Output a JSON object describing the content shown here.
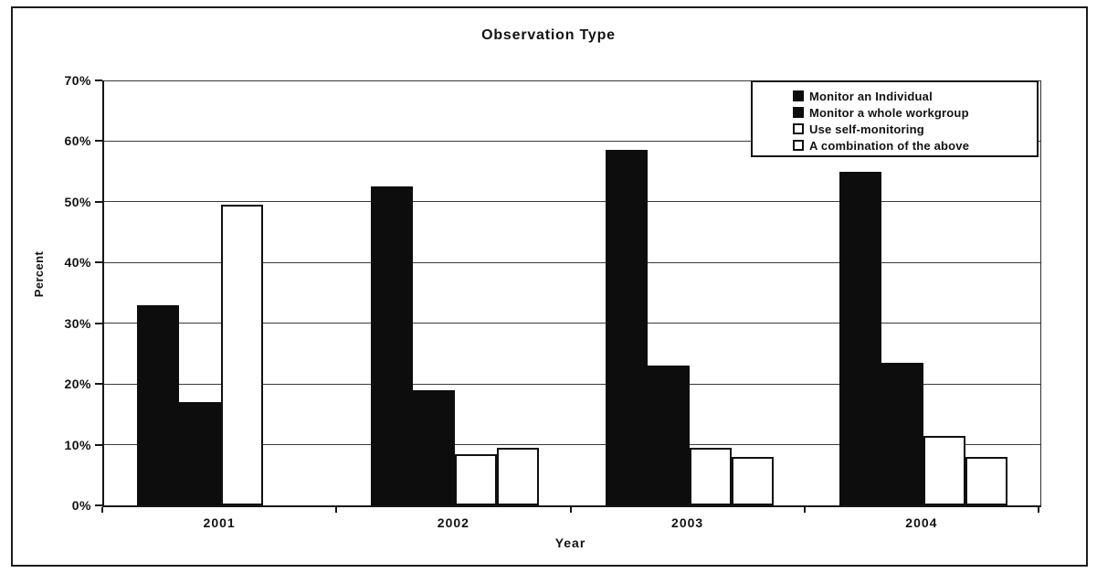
{
  "title": "Observation Type",
  "chart_data": {
    "type": "bar",
    "title": "Observation Type",
    "xlabel": "Year",
    "ylabel": "Percent",
    "ylim": [
      0,
      70
    ],
    "y_tick_step": 10,
    "y_ticks": [
      "0%",
      "10%",
      "20%",
      "30%",
      "40%",
      "50%",
      "60%",
      "70%"
    ],
    "grid": true,
    "legend_position": "top-right",
    "categories": [
      "2001",
      "2002",
      "2003",
      "2004"
    ],
    "series": [
      {
        "name": "Monitor an Individual",
        "fill": "#0d0d0d",
        "values": [
          33,
          52.5,
          58.5,
          55
        ]
      },
      {
        "name": "Monitor a whole workgroup",
        "fill": "#0d0d0d",
        "values": [
          17,
          19,
          23,
          23.5
        ]
      },
      {
        "name": "Use self-monitoring",
        "fill": "#ffffff",
        "values": [
          49.5,
          8.5,
          9.5,
          11.5
        ]
      },
      {
        "name": "A combination of the above",
        "fill": "#ffffff",
        "values": [
          0,
          9.5,
          8,
          8
        ]
      }
    ]
  },
  "legend": {
    "items": [
      {
        "label": "Monitor an Individual",
        "swatch": "black"
      },
      {
        "label": "Monitor a whole workgroup",
        "swatch": "black"
      },
      {
        "label": "Use self-monitoring",
        "swatch": "white"
      },
      {
        "label": "A combination of the above",
        "swatch": "white"
      }
    ]
  },
  "colors": {
    "bar_fill_dark": "#0d0d0d",
    "bar_fill_light": "#ffffff",
    "axis_line": "#161616",
    "gridline": "#3a3a3a",
    "frame_border": "#1c1c1c",
    "background": "#ffffff"
  }
}
